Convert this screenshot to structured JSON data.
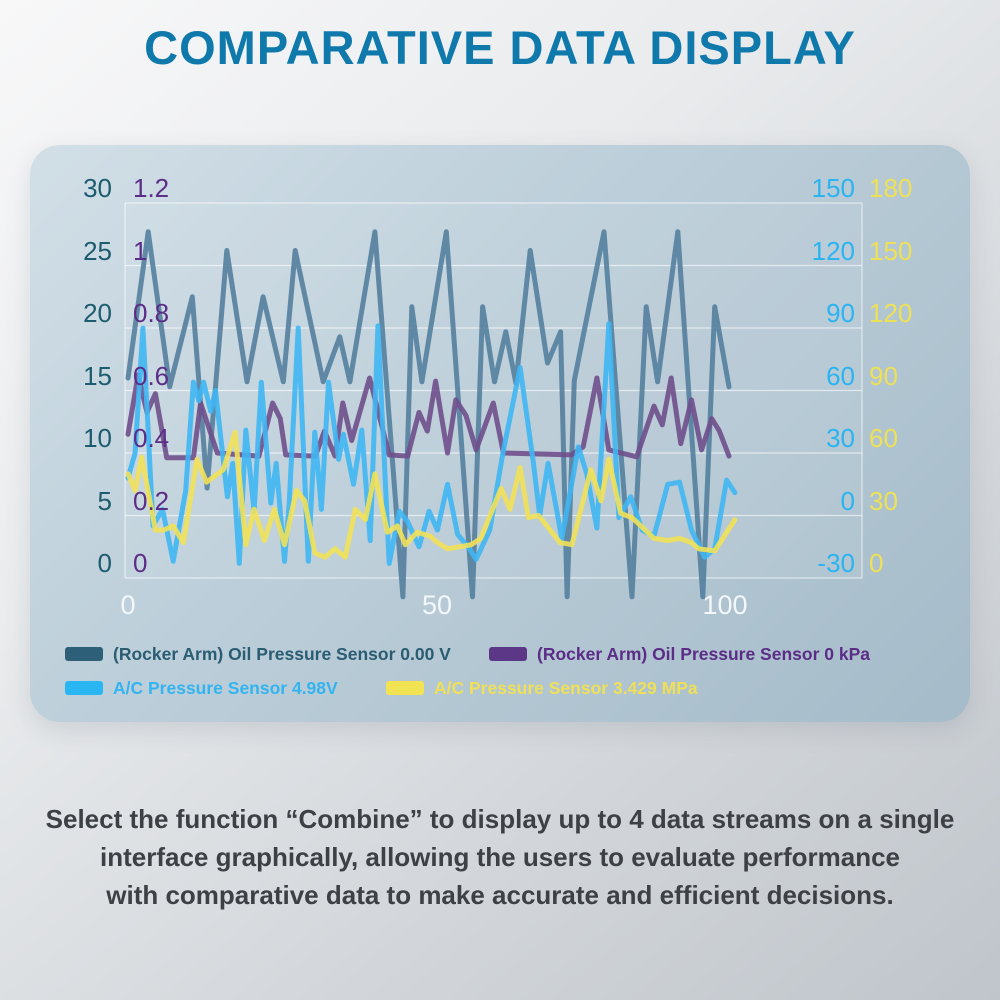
{
  "title": "COMPARATIVE DATA DISPLAY",
  "body_text": {
    "lines": [
      "Select the function “Combine” to display up to 4 data streams on a single",
      "interface graphically, allowing the users to evaluate performance",
      "with comparative data to make accurate and efficient decisions."
    ]
  },
  "chart_data": {
    "type": "line",
    "title": "",
    "grid": "horizontal-only, white lines on blue-gray panel",
    "legend_position": "bottom-left, two rows",
    "x_axis": {
      "tick_labels": [
        "0",
        "50",
        "100"
      ],
      "tick_values": [
        0,
        50,
        100
      ],
      "data_range": [
        0,
        102
      ],
      "drawn_range": [
        0,
        123
      ]
    },
    "axes": {
      "oil_v": {
        "side": "outer-left",
        "min": 0,
        "max": 30,
        "color": "#1d5c6e",
        "ticks": [
          "30",
          "25",
          "20",
          "15",
          "10",
          "5",
          "0"
        ]
      },
      "oil_kpa": {
        "side": "inner-left",
        "min": 0,
        "max": 1.2,
        "color": "#5b2d87",
        "ticks": [
          "1.2",
          "1",
          "0.8",
          "0.6",
          "0.4",
          "0.2",
          "0"
        ]
      },
      "ac_v": {
        "side": "inner-right",
        "min": -30,
        "max": 150,
        "color": "#2ab4f1",
        "ticks": [
          "150",
          "120",
          "90",
          "60",
          "30",
          "0",
          "-30"
        ]
      },
      "ac_mpa": {
        "side": "outer-right",
        "min": 0,
        "max": 180,
        "color": "#efe155",
        "ticks": [
          "180",
          "150",
          "120",
          "90",
          "60",
          "30",
          "0"
        ]
      }
    },
    "series": [
      {
        "name": "(Rocker Arm) Oil Pressure Sensor 0.00 V",
        "axis": "oil_v",
        "color": "#54809f",
        "swatch": "#2d5f78",
        "label_color": "#2a5c72",
        "points": [
          [
            0,
            16
          ],
          [
            3.4,
            27.7
          ],
          [
            7,
            15.3
          ],
          [
            10.8,
            22.5
          ],
          [
            13.3,
            7.2
          ],
          [
            16.6,
            26.2
          ],
          [
            20,
            15.7
          ],
          [
            22.7,
            22.5
          ],
          [
            26.1,
            15.7
          ],
          [
            28.1,
            26.2
          ],
          [
            32.8,
            15.7
          ],
          [
            35.6,
            19.3
          ],
          [
            37.3,
            15.7
          ],
          [
            41.5,
            27.7
          ],
          [
            46.2,
            -1.5
          ],
          [
            47.7,
            21.7
          ],
          [
            49.4,
            15.7
          ],
          [
            53.5,
            27.7
          ],
          [
            57.9,
            -1.5
          ],
          [
            59.6,
            21.7
          ],
          [
            61.6,
            15.7
          ],
          [
            63.5,
            19.7
          ],
          [
            65.2,
            15.6
          ],
          [
            67.6,
            26.2
          ],
          [
            70.5,
            17.2
          ],
          [
            72.7,
            19.7
          ],
          [
            73.8,
            -1.5
          ],
          [
            75,
            15.8
          ],
          [
            80,
            27.7
          ],
          [
            84.7,
            -1.5
          ],
          [
            87.1,
            21.7
          ],
          [
            89,
            15.7
          ],
          [
            92.4,
            27.7
          ],
          [
            96.6,
            -1.5
          ],
          [
            98.6,
            21.7
          ],
          [
            101,
            15.3
          ]
        ]
      },
      {
        "name": "(Rocker Arm) Oil Pressure Sensor 0 kPa",
        "axis": "oil_kpa",
        "color": "#6f4f8c",
        "swatch": "#5c3787",
        "label_color": "#5b2d87",
        "points": [
          [
            0,
            0.46
          ],
          [
            1.7,
            0.65
          ],
          [
            3.2,
            0.53
          ],
          [
            4.6,
            0.59
          ],
          [
            6.5,
            0.385
          ],
          [
            11,
            0.385
          ],
          [
            12.2,
            0.56
          ],
          [
            13.6,
            0.48
          ],
          [
            15,
            0.4
          ],
          [
            22,
            0.39
          ],
          [
            24.3,
            0.56
          ],
          [
            25.6,
            0.51
          ],
          [
            26.5,
            0.394
          ],
          [
            31.5,
            0.39
          ],
          [
            33,
            0.47
          ],
          [
            34.8,
            0.39
          ],
          [
            36.1,
            0.56
          ],
          [
            37.6,
            0.44
          ],
          [
            40.6,
            0.64
          ],
          [
            43.9,
            0.394
          ],
          [
            47,
            0.39
          ],
          [
            48.9,
            0.53
          ],
          [
            50.3,
            0.47
          ],
          [
            51.7,
            0.63
          ],
          [
            53.7,
            0.4
          ],
          [
            55.1,
            0.57
          ],
          [
            56.8,
            0.52
          ],
          [
            58.5,
            0.41
          ],
          [
            61.4,
            0.56
          ],
          [
            63.1,
            0.4
          ],
          [
            74.5,
            0.394
          ],
          [
            76.5,
            0.42
          ],
          [
            78.8,
            0.64
          ],
          [
            80.8,
            0.41
          ],
          [
            85.5,
            0.388
          ],
          [
            88.4,
            0.55
          ],
          [
            89.8,
            0.49
          ],
          [
            91.3,
            0.64
          ],
          [
            92.9,
            0.43
          ],
          [
            94.7,
            0.57
          ],
          [
            96.4,
            0.41
          ],
          [
            98.1,
            0.51
          ],
          [
            99.4,
            0.47
          ],
          [
            101,
            0.39
          ]
        ]
      },
      {
        "name": "A/C Pressure Sensor 4.98V",
        "axis": "ac_v",
        "color": "#3fb6f3",
        "swatch": "#29b6f2",
        "label_color": "#33b4f0",
        "points": [
          [
            0,
            18
          ],
          [
            1.2,
            30
          ],
          [
            2.5,
            90
          ],
          [
            4.2,
            -5
          ],
          [
            5.8,
            3
          ],
          [
            7.6,
            -22
          ],
          [
            9.7,
            12
          ],
          [
            11,
            64
          ],
          [
            11.9,
            55
          ],
          [
            12.7,
            64
          ],
          [
            13.9,
            50
          ],
          [
            14.7,
            60
          ],
          [
            16.7,
            9
          ],
          [
            17.6,
            25
          ],
          [
            18.7,
            -23
          ],
          [
            19.8,
            41
          ],
          [
            21.2,
            2
          ],
          [
            22.4,
            64
          ],
          [
            24,
            6
          ],
          [
            24.9,
            25
          ],
          [
            26.3,
            -22
          ],
          [
            27.1,
            6
          ],
          [
            28.6,
            90
          ],
          [
            30.3,
            -22
          ],
          [
            31.4,
            40
          ],
          [
            32.5,
            3
          ],
          [
            33.7,
            64
          ],
          [
            35.4,
            27
          ],
          [
            36.2,
            39
          ],
          [
            37.9,
            15
          ],
          [
            39.3,
            41
          ],
          [
            40.7,
            -12
          ],
          [
            42,
            91
          ],
          [
            43.9,
            -23
          ],
          [
            45.6,
            2
          ],
          [
            47,
            -3
          ],
          [
            48.9,
            -15
          ],
          [
            50.6,
            2
          ],
          [
            52,
            -7
          ],
          [
            53.7,
            15
          ],
          [
            55.4,
            -9
          ],
          [
            57.4,
            -16
          ],
          [
            58.5,
            -21
          ],
          [
            60.8,
            -7
          ],
          [
            63,
            30
          ],
          [
            65.9,
            71
          ],
          [
            68.1,
            26
          ],
          [
            69.2,
            0
          ],
          [
            70.6,
            25
          ],
          [
            72.9,
            -11
          ],
          [
            75.7,
            33
          ],
          [
            77.1,
            20
          ],
          [
            78.8,
            -6
          ],
          [
            80.8,
            92
          ],
          [
            82.5,
            -1
          ],
          [
            84.5,
            9
          ],
          [
            86.4,
            -7
          ],
          [
            88.4,
            -10
          ],
          [
            90.7,
            15
          ],
          [
            92.7,
            16
          ],
          [
            94.7,
            -7
          ],
          [
            96.9,
            -20
          ],
          [
            98.6,
            -16
          ],
          [
            100.6,
            17
          ],
          [
            102,
            11
          ]
        ]
      },
      {
        "name": "A/C Pressure Sensor 3.429 MPa",
        "axis": "ac_mpa",
        "color": "#f1e158",
        "swatch": "#f2e353",
        "label_color": "#efe058",
        "points": [
          [
            0,
            50
          ],
          [
            1.2,
            42
          ],
          [
            2.3,
            58
          ],
          [
            4.6,
            23
          ],
          [
            6,
            23
          ],
          [
            7.6,
            25
          ],
          [
            9.3,
            17
          ],
          [
            11.6,
            57
          ],
          [
            13.2,
            46
          ],
          [
            16,
            52
          ],
          [
            18,
            70
          ],
          [
            19.8,
            16
          ],
          [
            21.2,
            33
          ],
          [
            22.9,
            18
          ],
          [
            24.6,
            33
          ],
          [
            26.3,
            16
          ],
          [
            28.3,
            42
          ],
          [
            29.7,
            37
          ],
          [
            31.4,
            12
          ],
          [
            33.1,
            10
          ],
          [
            34.8,
            14
          ],
          [
            36.5,
            10
          ],
          [
            38.2,
            33
          ],
          [
            39.9,
            28
          ],
          [
            41.5,
            50
          ],
          [
            43.6,
            22
          ],
          [
            45.3,
            25
          ],
          [
            46.6,
            16
          ],
          [
            48.6,
            22
          ],
          [
            50.8,
            20
          ],
          [
            52,
            17
          ],
          [
            53.7,
            14
          ],
          [
            55.7,
            15
          ],
          [
            57.7,
            16
          ],
          [
            59.3,
            19
          ],
          [
            62.7,
            43
          ],
          [
            64.2,
            33
          ],
          [
            65.9,
            53
          ],
          [
            67.3,
            29
          ],
          [
            69,
            30
          ],
          [
            72.6,
            17
          ],
          [
            74.6,
            16
          ],
          [
            77.8,
            52
          ],
          [
            79.5,
            37
          ],
          [
            80.8,
            57
          ],
          [
            82.8,
            31
          ],
          [
            84.7,
            29
          ],
          [
            88.4,
            19
          ],
          [
            90.7,
            18
          ],
          [
            92.7,
            19
          ],
          [
            94.7,
            17
          ],
          [
            95.9,
            14
          ],
          [
            98.6,
            13
          ],
          [
            102,
            28
          ]
        ]
      }
    ]
  }
}
